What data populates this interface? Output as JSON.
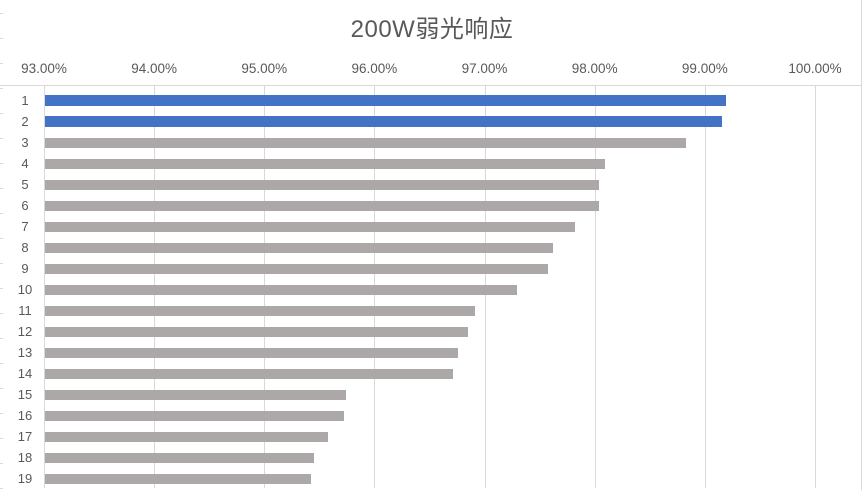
{
  "chart_data": {
    "type": "bar",
    "orientation": "horizontal",
    "title": "200W弱光响应",
    "categories": [
      "1",
      "2",
      "3",
      "4",
      "5",
      "6",
      "7",
      "8",
      "9",
      "10",
      "11",
      "12",
      "13",
      "14",
      "15",
      "16",
      "17",
      "18",
      "19"
    ],
    "values": [
      99.19,
      99.16,
      98.83,
      98.09,
      98.04,
      98.04,
      97.82,
      97.62,
      97.58,
      97.29,
      96.91,
      96.85,
      96.76,
      96.71,
      95.74,
      95.72,
      95.58,
      95.45,
      95.42
    ],
    "value_format": "percent",
    "xlim": [
      93,
      100
    ],
    "x_tick_values": [
      93,
      94,
      95,
      96,
      97,
      98,
      99,
      100
    ],
    "x_tick_labels": [
      "93.00%",
      "94.00%",
      "95.00%",
      "96.00%",
      "97.00%",
      "98.00%",
      "99.00%",
      "100.00%"
    ],
    "axis_labels_position": "top",
    "grid": "vertical",
    "legend": "none",
    "highlighted_categories": [
      "1",
      "2"
    ],
    "colors": {
      "highlight_bar": "#4472C4",
      "default_bar": "#ACA8A8",
      "gridline": "#D9D9D9",
      "text": "#595959",
      "background": "#FFFFFF"
    }
  }
}
